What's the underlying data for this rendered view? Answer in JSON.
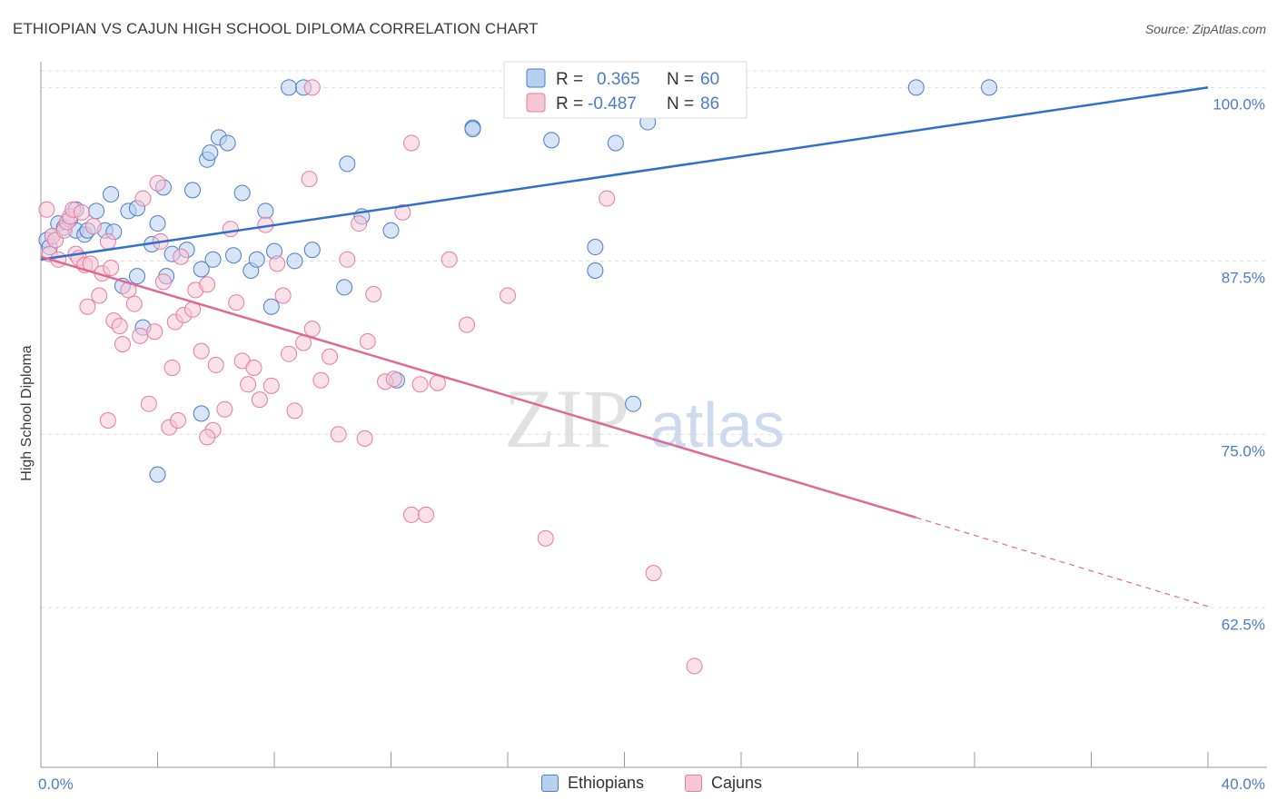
{
  "title": "ETHIOPIAN VS CAJUN HIGH SCHOOL DIPLOMA CORRELATION CHART",
  "source": "Source: ZipAtlas.com",
  "watermark": {
    "zip": "ZIP",
    "atlas": "atlas"
  },
  "colors": {
    "blue": "#4a7cc9",
    "blue_fill": "#b8d0f0",
    "blue_line": "#2f6fcc",
    "pink": "#e87aa0",
    "pink_fill": "#f6c6d5",
    "pink_line": "#e06894",
    "grid": "#dddddd",
    "axis": "#999999"
  },
  "legend": {
    "r_label": "R =",
    "n_label": "N =",
    "blue": {
      "r": "0.365",
      "n": "60"
    },
    "pink": {
      "r": "-0.487",
      "n": "86"
    }
  },
  "bottom_legend": {
    "ethiopians": "Ethiopians",
    "cajuns": "Cajuns"
  },
  "chart_data": {
    "type": "scatter",
    "title": "ETHIOPIAN VS CAJUN HIGH SCHOOL DIPLOMA CORRELATION CHART",
    "xlabel": "",
    "ylabel": "High School Diploma",
    "xlim": [
      0,
      40
    ],
    "ylim": [
      51,
      101.2
    ],
    "x_tick_labels": [
      "0.0%",
      "40.0%"
    ],
    "y_ticks": [
      62.5,
      75.0,
      87.5,
      100.0
    ],
    "y_tick_labels": [
      "62.5%",
      "75.0%",
      "87.5%",
      "100.0%"
    ],
    "series": [
      {
        "name": "Ethiopians",
        "color": "#4a7cc9",
        "r": 0.365,
        "n": 60,
        "trend": {
          "x": [
            0,
            40
          ],
          "y": [
            87.6,
            100.0
          ]
        },
        "points": [
          [
            0.2,
            89.0
          ],
          [
            0.3,
            88.5
          ],
          [
            0.4,
            89.3
          ],
          [
            0.6,
            90.2
          ],
          [
            0.8,
            89.9
          ],
          [
            1.0,
            90.5
          ],
          [
            1.2,
            91.2
          ],
          [
            1.2,
            89.7
          ],
          [
            1.5,
            89.4
          ],
          [
            1.6,
            89.7
          ],
          [
            1.9,
            91.1
          ],
          [
            2.2,
            89.7
          ],
          [
            2.5,
            89.6
          ],
          [
            2.4,
            92.3
          ],
          [
            3.0,
            91.1
          ],
          [
            3.3,
            91.3
          ],
          [
            2.8,
            85.7
          ],
          [
            3.3,
            86.4
          ],
          [
            3.5,
            82.7
          ],
          [
            3.8,
            88.7
          ],
          [
            4.0,
            90.2
          ],
          [
            4.2,
            92.8
          ],
          [
            4.3,
            86.4
          ],
          [
            4.5,
            88.0
          ],
          [
            5.0,
            88.3
          ],
          [
            5.2,
            92.6
          ],
          [
            5.5,
            86.9
          ],
          [
            5.7,
            94.8
          ],
          [
            5.8,
            95.3
          ],
          [
            5.9,
            87.6
          ],
          [
            6.1,
            96.4
          ],
          [
            6.4,
            96.0
          ],
          [
            6.6,
            87.9
          ],
          [
            6.9,
            92.4
          ],
          [
            7.2,
            86.8
          ],
          [
            7.4,
            87.6
          ],
          [
            7.7,
            91.1
          ],
          [
            8.0,
            88.2
          ],
          [
            7.9,
            84.2
          ],
          [
            8.7,
            87.5
          ],
          [
            9.3,
            88.3
          ],
          [
            10.4,
            85.6
          ],
          [
            10.5,
            94.5
          ],
          [
            11.0,
            90.7
          ],
          [
            12.0,
            89.7
          ],
          [
            12.2,
            78.9
          ],
          [
            14.8,
            97.1
          ],
          [
            14.8,
            97.0
          ],
          [
            17.5,
            96.2
          ],
          [
            19.0,
            88.5
          ],
          [
            19.0,
            86.8
          ],
          [
            19.7,
            96.0
          ],
          [
            20.3,
            77.2
          ],
          [
            20.8,
            97.5
          ],
          [
            8.5,
            100.0
          ],
          [
            9.0,
            100.0
          ],
          [
            30.0,
            100.0
          ],
          [
            32.5,
            100.0
          ],
          [
            5.5,
            76.5
          ],
          [
            4.0,
            72.1
          ]
        ]
      },
      {
        "name": "Cajuns",
        "color": "#e87aa0",
        "r": -0.487,
        "n": 86,
        "trend": {
          "x": [
            0,
            30.0
          ],
          "y": [
            87.8,
            69.0
          ]
        },
        "trend_dashed": {
          "x": [
            30.0,
            40
          ],
          "y": [
            69.0,
            62.6
          ]
        },
        "points": [
          [
            0.2,
            91.2
          ],
          [
            0.3,
            88.0
          ],
          [
            0.4,
            89.3
          ],
          [
            0.5,
            89.0
          ],
          [
            0.6,
            87.6
          ],
          [
            0.8,
            89.7
          ],
          [
            0.9,
            90.3
          ],
          [
            1.0,
            90.7
          ],
          [
            1.1,
            91.2
          ],
          [
            1.2,
            88.0
          ],
          [
            1.3,
            87.7
          ],
          [
            1.4,
            91.0
          ],
          [
            1.5,
            87.2
          ],
          [
            1.6,
            84.2
          ],
          [
            1.7,
            87.3
          ],
          [
            1.8,
            90.0
          ],
          [
            2.0,
            85.0
          ],
          [
            2.1,
            86.6
          ],
          [
            2.3,
            88.9
          ],
          [
            2.4,
            87.0
          ],
          [
            2.5,
            83.2
          ],
          [
            2.7,
            82.8
          ],
          [
            2.8,
            81.5
          ],
          [
            3.0,
            85.4
          ],
          [
            3.2,
            84.4
          ],
          [
            3.4,
            82.1
          ],
          [
            3.5,
            92.0
          ],
          [
            3.7,
            77.2
          ],
          [
            3.9,
            82.4
          ],
          [
            4.1,
            88.9
          ],
          [
            4.2,
            86.0
          ],
          [
            4.4,
            75.5
          ],
          [
            4.5,
            79.8
          ],
          [
            4.6,
            83.1
          ],
          [
            4.7,
            76.0
          ],
          [
            4.9,
            83.6
          ],
          [
            5.2,
            84.0
          ],
          [
            5.3,
            85.4
          ],
          [
            5.5,
            81.0
          ],
          [
            5.7,
            85.8
          ],
          [
            5.9,
            75.3
          ],
          [
            6.0,
            80.0
          ],
          [
            6.3,
            76.8
          ],
          [
            6.5,
            89.8
          ],
          [
            6.7,
            84.5
          ],
          [
            6.9,
            80.3
          ],
          [
            7.1,
            78.6
          ],
          [
            7.3,
            79.8
          ],
          [
            7.5,
            77.5
          ],
          [
            7.7,
            90.1
          ],
          [
            7.9,
            78.5
          ],
          [
            8.1,
            87.3
          ],
          [
            8.3,
            85.0
          ],
          [
            8.5,
            80.8
          ],
          [
            8.7,
            76.7
          ],
          [
            9.0,
            81.6
          ],
          [
            9.3,
            82.6
          ],
          [
            9.6,
            78.9
          ],
          [
            9.9,
            80.6
          ],
          [
            10.2,
            75.0
          ],
          [
            10.5,
            87.6
          ],
          [
            10.9,
            90.2
          ],
          [
            11.2,
            81.7
          ],
          [
            11.4,
            85.1
          ],
          [
            11.8,
            78.8
          ],
          [
            12.1,
            79.0
          ],
          [
            12.4,
            91.0
          ],
          [
            12.7,
            96.0
          ],
          [
            13.0,
            78.6
          ],
          [
            12.7,
            69.2
          ],
          [
            13.2,
            69.2
          ],
          [
            13.6,
            78.7
          ],
          [
            14.0,
            87.6
          ],
          [
            14.6,
            82.9
          ],
          [
            16.0,
            85.0
          ],
          [
            17.3,
            67.5
          ],
          [
            19.4,
            92.0
          ],
          [
            21.0,
            65.0
          ],
          [
            22.4,
            58.3
          ],
          [
            9.3,
            100.0
          ],
          [
            9.2,
            93.4
          ],
          [
            4.0,
            93.1
          ],
          [
            11.1,
            74.7
          ],
          [
            4.8,
            87.8
          ],
          [
            2.3,
            76.0
          ],
          [
            5.7,
            74.8
          ]
        ]
      }
    ],
    "legend_position": "top-center"
  }
}
